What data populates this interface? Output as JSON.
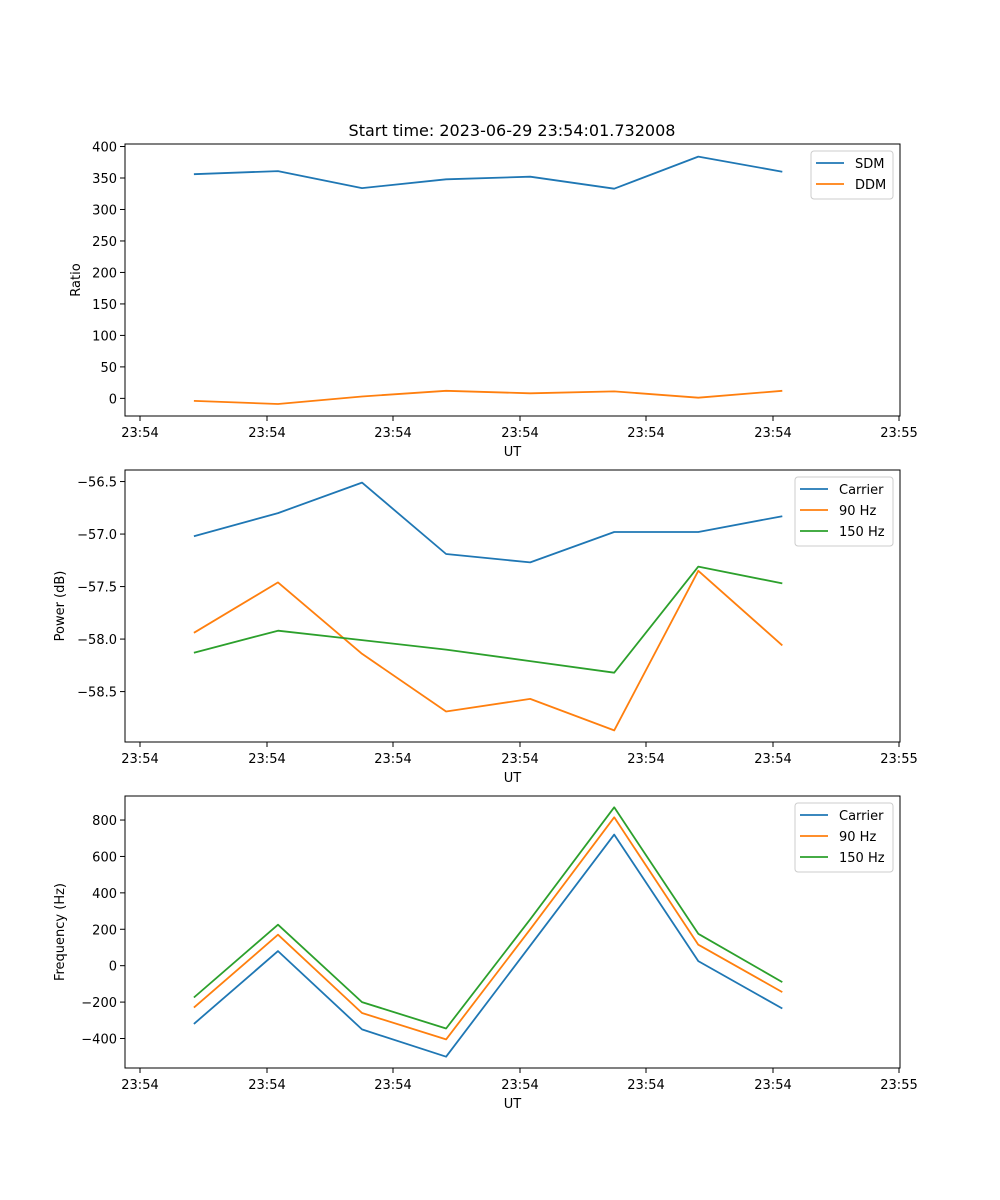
{
  "figure_title": "Start time: 2023-06-29 23:54:01.732008",
  "chart_data": [
    {
      "type": "line",
      "title": "Start time: 2023-06-29 23:54:01.732008",
      "xlabel": "UT",
      "ylabel": "Ratio",
      "x_tick_labels": [
        "23:54",
        "23:54",
        "23:54",
        "23:54",
        "23:54",
        "23:54",
        "23:54",
        "23:55"
      ],
      "x": [
        1,
        2,
        3,
        4,
        5,
        6,
        7,
        8
      ],
      "xlim": [
        0.18,
        9.4
      ],
      "ylim": [
        -28,
        404
      ],
      "y_ticks": [
        0,
        50,
        100,
        150,
        200,
        250,
        300,
        350,
        400
      ],
      "legend_position": "top-right",
      "series": [
        {
          "name": "SDM",
          "color": "#1f77b4",
          "values": [
            356,
            361,
            334,
            348,
            352,
            333,
            384,
            360
          ]
        },
        {
          "name": "DDM",
          "color": "#ff7f0e",
          "values": [
            -4,
            -9,
            3,
            12,
            8,
            11,
            1,
            12
          ]
        }
      ]
    },
    {
      "type": "line",
      "xlabel": "UT",
      "ylabel": "Power (dB)",
      "x_tick_labels": [
        "23:54",
        "23:54",
        "23:54",
        "23:54",
        "23:54",
        "23:54",
        "23:54",
        "23:55"
      ],
      "x": [
        1,
        2,
        3,
        4,
        5,
        6,
        7,
        8
      ],
      "xlim": [
        0.18,
        9.4
      ],
      "ylim": [
        -58.98,
        -56.39
      ],
      "y_ticks": [
        -58.5,
        -58.0,
        -57.5,
        -57.0,
        -56.5
      ],
      "y_tick_labels": [
        "−58.5",
        "−58.0",
        "−57.5",
        "−57.0",
        "−56.5"
      ],
      "legend_position": "top-right",
      "series": [
        {
          "name": "Carrier",
          "color": "#1f77b4",
          "values": [
            -57.02,
            -56.8,
            -56.51,
            -57.19,
            -57.27,
            -56.98,
            -56.98,
            -56.83
          ]
        },
        {
          "name": "90 Hz",
          "color": "#ff7f0e",
          "values": [
            -57.94,
            -57.46,
            -58.14,
            -58.69,
            -58.57,
            -58.87,
            -57.35,
            -58.06
          ]
        },
        {
          "name": "150 Hz",
          "color": "#2ca02c",
          "values": [
            -58.13,
            -57.92,
            -58.01,
            -58.1,
            -58.21,
            -58.32,
            -57.31,
            -57.47
          ]
        }
      ]
    },
    {
      "type": "line",
      "xlabel": "UT",
      "ylabel": "Frequency (Hz)",
      "x_tick_labels": [
        "23:54",
        "23:54",
        "23:54",
        "23:54",
        "23:54",
        "23:54",
        "23:54",
        "23:55"
      ],
      "x": [
        1,
        2,
        3,
        4,
        5,
        6,
        7,
        8
      ],
      "xlim": [
        0.18,
        9.4
      ],
      "ylim": [
        -562,
        932
      ],
      "y_ticks": [
        -400,
        -200,
        0,
        200,
        400,
        600,
        800
      ],
      "y_tick_labels": [
        "−400",
        "−200",
        "0",
        "200",
        "400",
        "600",
        "800"
      ],
      "legend_position": "top-right",
      "series": [
        {
          "name": "Carrier",
          "color": "#1f77b4",
          "values": [
            -320,
            80,
            -350,
            -500,
            110,
            720,
            25,
            -235
          ]
        },
        {
          "name": "90 Hz",
          "color": "#ff7f0e",
          "values": [
            -230,
            170,
            -260,
            -405,
            200,
            815,
            115,
            -145
          ]
        },
        {
          "name": "150 Hz",
          "color": "#2ca02c",
          "values": [
            -175,
            225,
            -200,
            -345,
            255,
            870,
            175,
            -90
          ]
        }
      ]
    }
  ]
}
